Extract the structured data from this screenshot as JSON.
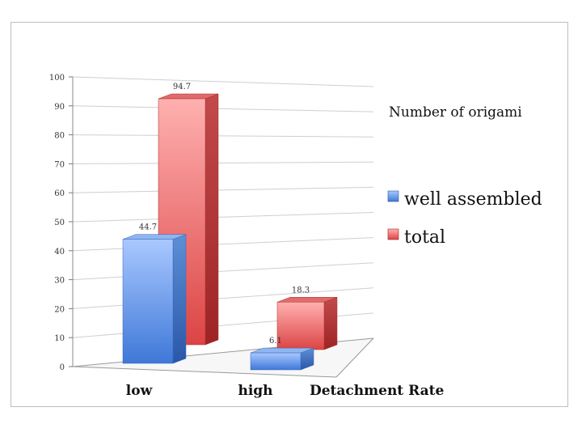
{
  "chart_data": {
    "type": "bar",
    "title": "",
    "xlabel": "Detachment Rate",
    "ylabel": "",
    "legend_title": "Number of origami",
    "legend_position": "right",
    "categories": [
      "low",
      "high"
    ],
    "series": [
      {
        "name": "well assembled",
        "values": [
          44.7,
          6.1
        ],
        "color": "#6f9fe6"
      },
      {
        "name": "total",
        "values": [
          94.7,
          18.3
        ],
        "color": "#e65a5a"
      }
    ],
    "data_labels": [
      [
        "44.7",
        "6.1"
      ],
      [
        "94.7",
        "18.3"
      ]
    ],
    "ylim": [
      0,
      100
    ],
    "yticks": [
      "0",
      "10",
      "20",
      "30",
      "40",
      "50",
      "60",
      "70",
      "80",
      "90",
      "100"
    ],
    "grid": true,
    "style": "3d-column"
  }
}
